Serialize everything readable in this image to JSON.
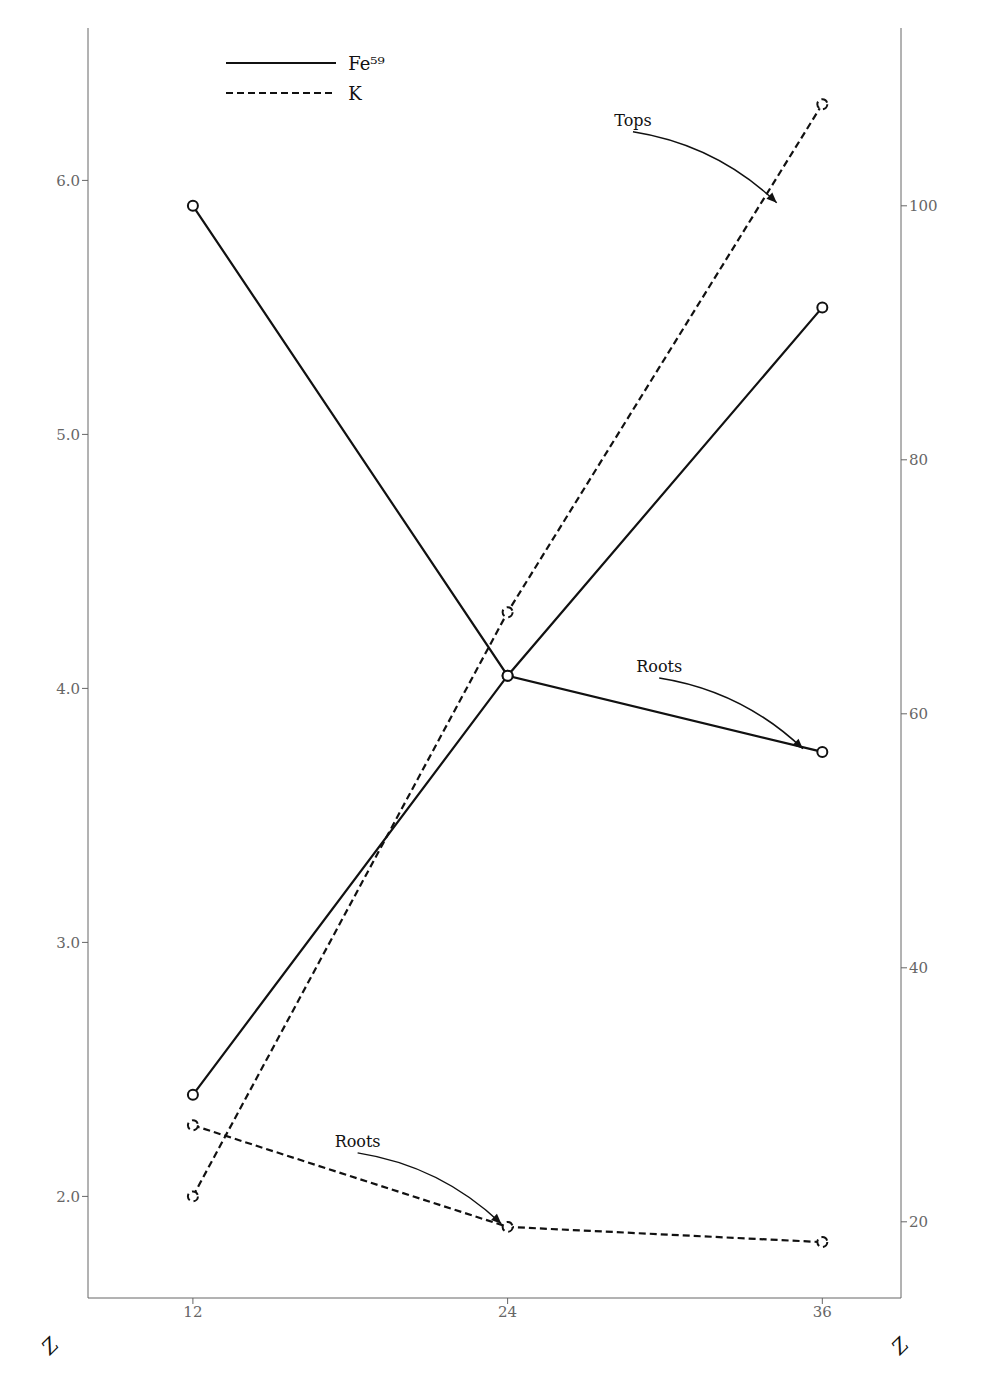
{
  "chart_data": {
    "type": "line",
    "x": [
      12,
      24,
      36
    ],
    "xlim": [
      8,
      39
    ],
    "xticks": [
      12,
      24,
      36
    ],
    "ylim": [
      1.6,
      6.6
    ],
    "yticks": [
      {
        "value": 2.0,
        "label": "2.0"
      },
      {
        "value": 3.0,
        "label": "3.0"
      },
      {
        "value": 4.0,
        "label": "4.0"
      },
      {
        "value": 5.0,
        "label": "5.0"
      },
      {
        "value": 6.0,
        "label": "6.0"
      }
    ],
    "y2lim": [
      14,
      114
    ],
    "y2ticks": [
      20,
      40,
      60,
      80,
      100
    ],
    "grid": false,
    "legend": "upper left",
    "series": [
      {
        "name": "Fe⁵⁹",
        "color": "#111111",
        "line_style": "solid",
        "marker": "circle",
        "values": [
          5.9,
          4.05,
          3.75
        ]
      },
      {
        "name": "Fe⁵⁹",
        "color": "#111111",
        "line_style": "solid",
        "marker": "circle",
        "values": [
          2.4,
          4.05,
          5.5
        ]
      },
      {
        "name": "K",
        "color": "#111111",
        "line_style": "dashed",
        "marker": "circle",
        "values": [
          2.28,
          1.88,
          1.82
        ]
      },
      {
        "name": "K",
        "color": "#111111",
        "line_style": "dashed",
        "marker": "circle",
        "values": [
          22,
          68,
          108
        ],
        "axis": "y2"
      }
    ],
    "annotations": [
      {
        "text": "Tops",
        "x": 34.5,
        "y": 100,
        "axis": "y2"
      },
      {
        "text": "Roots",
        "x": 35.5,
        "y": 3.75
      },
      {
        "text": "Roots",
        "x": 24,
        "y": 1.88
      },
      {
        "text": "Z"
      },
      {
        "text": "Z"
      }
    ]
  }
}
